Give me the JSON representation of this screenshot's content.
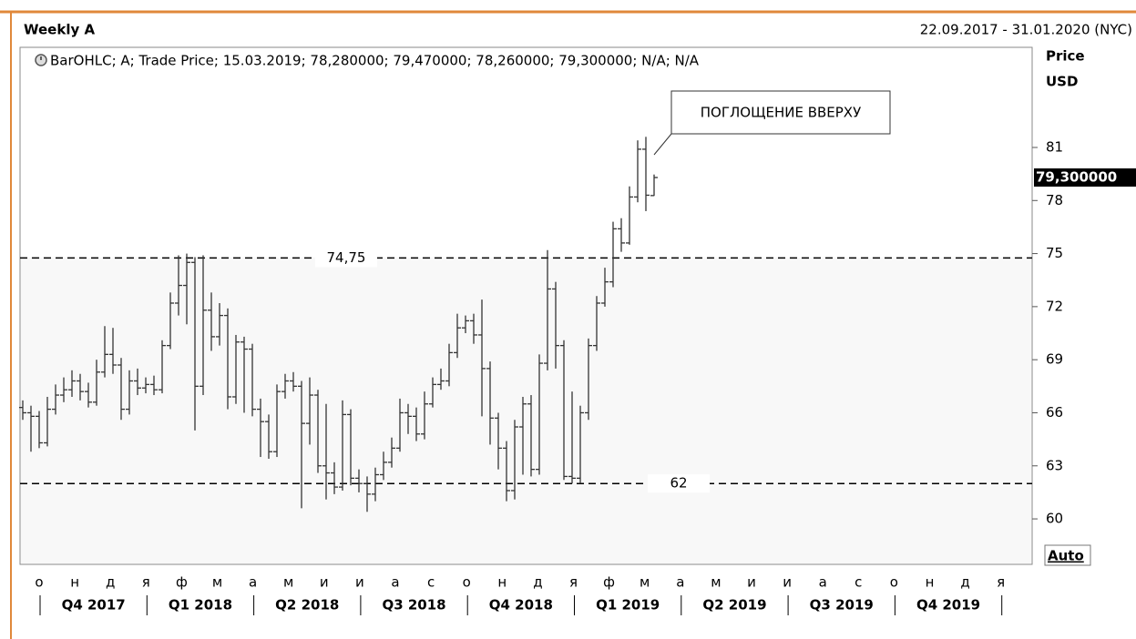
{
  "chart_data": {
    "type": "ohlc",
    "title": "Weekly A",
    "date_range": "22.09.2017 - 31.01.2020 (NYC)",
    "legend": "BarOHLC; A; Trade Price; 15.03.2019; 78,280000; 79,470000; 78,260000; 79,300000; N/A; N/A",
    "y_axis_title": "Price",
    "y_axis_unit": "USD",
    "auto_button": "Auto",
    "annotation": "ПОГЛОЩЕНИЕ ВВЕРХУ",
    "color": "#333333",
    "ylim": [
      57.43,
      86.66
    ],
    "yticks": [
      60,
      63,
      66,
      69,
      72,
      75,
      78,
      81
    ],
    "months": [
      "о",
      "н",
      "д",
      "я",
      "ф",
      "м",
      "а",
      "м",
      "и",
      "и",
      "а",
      "с",
      "о",
      "н",
      "д",
      "я",
      "ф",
      "м",
      "а",
      "м",
      "и",
      "и",
      "а",
      "с",
      "о",
      "н",
      "д",
      "я"
    ],
    "quarters": [
      "Q4 2017",
      "Q1 2018",
      "Q2 2018",
      "Q3 2018",
      "Q4 2018",
      "Q1 2019",
      "Q2 2019",
      "Q3 2019",
      "Q4 2019"
    ],
    "levels": [
      {
        "value": 74.75,
        "label": "74,75"
      },
      {
        "value": 62,
        "label": "62"
      }
    ],
    "last_price": {
      "value": 79.3,
      "label": "79,300000"
    },
    "open": [
      66.3,
      66.0,
      65.8,
      64.3,
      66.2,
      67.0,
      67.3,
      67.8,
      67.2,
      66.6,
      68.3,
      69.3,
      68.7,
      66.2,
      67.8,
      67.4,
      67.6,
      67.3,
      69.8,
      72.2,
      73.2,
      74.5,
      67.5,
      71.8,
      70.3,
      71.5,
      66.9,
      70.0,
      69.6,
      66.2,
      65.5,
      63.8,
      67.2,
      67.8,
      67.5,
      65.4,
      67.0,
      63.0,
      62.6,
      61.8,
      65.9,
      62.3,
      62.0,
      61.4,
      62.5,
      63.2,
      64.0,
      66.0,
      65.8,
      64.8,
      66.5,
      67.6,
      67.8,
      69.4,
      70.8,
      71.2,
      70.4,
      68.5,
      65.7,
      64.0,
      61.6,
      65.2,
      66.5,
      62.8,
      68.8,
      73.0,
      69.8,
      62.4,
      62.3,
      66.0,
      69.8,
      72.2,
      73.4,
      76.4,
      75.6,
      78.2,
      80.9,
      78.28
    ],
    "high": [
      66.7,
      66.4,
      66.1,
      66.9,
      67.6,
      68.0,
      68.4,
      68.2,
      67.7,
      69.0,
      70.9,
      70.8,
      69.1,
      68.4,
      68.5,
      68.0,
      68.1,
      70.1,
      72.8,
      74.9,
      75.0,
      74.8,
      74.9,
      72.8,
      72.2,
      71.9,
      70.4,
      70.3,
      69.9,
      66.8,
      65.9,
      67.6,
      68.2,
      68.3,
      67.8,
      68.0,
      67.3,
      66.5,
      63.2,
      66.7,
      66.2,
      62.8,
      62.4,
      62.9,
      63.8,
      64.6,
      66.8,
      66.5,
      66.3,
      67.2,
      68.0,
      68.5,
      69.9,
      71.6,
      71.5,
      71.6,
      72.4,
      68.9,
      66.0,
      64.4,
      65.6,
      66.9,
      67.0,
      69.3,
      75.2,
      73.4,
      70.1,
      67.2,
      66.4,
      70.2,
      72.6,
      74.2,
      76.8,
      77.0,
      78.8,
      81.4,
      81.6,
      79.47
    ],
    "low": [
      65.6,
      63.8,
      64.0,
      64.1,
      65.9,
      66.6,
      66.9,
      66.7,
      66.3,
      66.4,
      68.0,
      68.2,
      65.6,
      65.9,
      67.0,
      67.1,
      67.0,
      67.1,
      69.6,
      71.5,
      71.0,
      65.0,
      67.0,
      69.5,
      69.8,
      66.2,
      66.5,
      66.0,
      65.8,
      63.5,
      63.4,
      63.5,
      66.8,
      67.2,
      60.6,
      64.2,
      62.6,
      61.1,
      61.4,
      61.6,
      61.9,
      61.5,
      60.4,
      61.0,
      62.2,
      62.9,
      63.8,
      64.8,
      64.4,
      64.5,
      66.3,
      67.3,
      67.5,
      69.1,
      70.5,
      69.9,
      65.8,
      64.2,
      62.8,
      61.0,
      61.1,
      62.5,
      62.4,
      62.5,
      68.4,
      68.5,
      62.2,
      62.0,
      62.0,
      65.6,
      69.5,
      72.0,
      73.1,
      75.1,
      75.5,
      77.9,
      77.4,
      78.26
    ],
    "close": [
      66.0,
      65.8,
      64.3,
      66.2,
      67.0,
      67.3,
      67.8,
      67.2,
      66.6,
      68.3,
      69.3,
      68.7,
      66.2,
      67.8,
      67.4,
      67.6,
      67.3,
      69.8,
      72.2,
      73.2,
      74.5,
      67.5,
      71.8,
      70.3,
      71.5,
      66.9,
      70.0,
      69.6,
      66.2,
      65.5,
      63.8,
      67.2,
      67.8,
      67.5,
      65.4,
      67.0,
      63.0,
      62.6,
      61.8,
      65.9,
      62.3,
      62.0,
      61.4,
      62.5,
      63.2,
      64.0,
      66.0,
      65.8,
      64.8,
      66.5,
      67.6,
      67.8,
      69.4,
      70.8,
      71.2,
      70.4,
      68.5,
      65.7,
      64.0,
      61.6,
      65.2,
      66.5,
      62.8,
      68.8,
      73.0,
      69.8,
      62.4,
      62.3,
      66.0,
      69.8,
      72.2,
      73.4,
      76.4,
      75.6,
      78.2,
      80.9,
      78.3,
      79.3
    ]
  }
}
